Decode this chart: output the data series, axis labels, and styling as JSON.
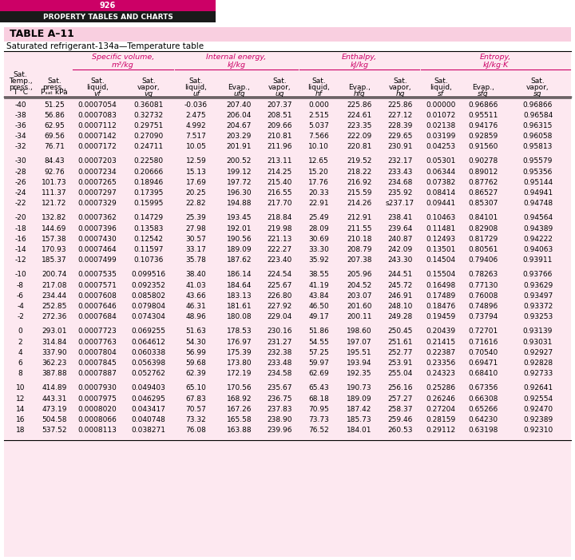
{
  "page_number": "926",
  "header_title": "PROPERTY TABLES AND CHARTS",
  "table_name": "TABLE A–11",
  "subtitle": "Saturated refrigerant-134a—Temperature table",
  "header_bg": "#cc0066",
  "black_bar_bg": "#1a1a1a",
  "table_bg": "#fde8f0",
  "table_name_bg": "#f9cfe0",
  "pink_line": "#cc0066",
  "col_group_labels": [
    "Specific volume,\nm³/kg",
    "Internal energy,\nkJ/kg",
    "Enthalpy,\nkJ/kg",
    "Entropy,\nkJ/kg·K"
  ],
  "row_strings": [
    [
      "-40",
      "51.25",
      "0.0007054",
      "0.36081",
      "-0.036",
      "207.40",
      "207.37",
      "0.000",
      "225.86",
      "225.86",
      "0.00000",
      "0.96866",
      "0.96866"
    ],
    [
      "-38",
      "56.86",
      "0.0007083",
      "0.32732",
      "2.475",
      "206.04",
      "208.51",
      "2.515",
      "224.61",
      "227.12",
      "0.01072",
      "0.95511",
      "0.96584"
    ],
    [
      "-36",
      "62.95",
      "0.0007112",
      "0.29751",
      "4.992",
      "204.67",
      "209.66",
      "5.037",
      "223.35",
      "228.39",
      "0.02138",
      "0.94176",
      "0.96315"
    ],
    [
      "-34",
      "69.56",
      "0.0007142",
      "0.27090",
      "7.517",
      "203.29",
      "210.81",
      "7.566",
      "222.09",
      "229.65",
      "0.03199",
      "0.92859",
      "0.96058"
    ],
    [
      "-32",
      "76.71",
      "0.0007172",
      "0.24711",
      "10.05",
      "201.91",
      "211.96",
      "10.10",
      "220.81",
      "230.91",
      "0.04253",
      "0.91560",
      "0.95813"
    ],
    null,
    [
      "-30",
      "84.43",
      "0.0007203",
      "0.22580",
      "12.59",
      "200.52",
      "213.11",
      "12.65",
      "219.52",
      "232.17",
      "0.05301",
      "0.90278",
      "0.95579"
    ],
    [
      "-28",
      "92.76",
      "0.0007234",
      "0.20666",
      "15.13",
      "199.12",
      "214.25",
      "15.20",
      "218.22",
      "233.43",
      "0.06344",
      "0.89012",
      "0.95356"
    ],
    [
      "-26",
      "101.73",
      "0.0007265",
      "0.18946",
      "17.69",
      "197.72",
      "215.40",
      "17.76",
      "216.92",
      "234.68",
      "0.07382",
      "0.87762",
      "0.95144"
    ],
    [
      "-24",
      "111.37",
      "0.0007297",
      "0.17395",
      "20.25",
      "196.30",
      "216.55",
      "20.33",
      "215.59",
      "235.92",
      "0.08414",
      "0.86527",
      "0.94941"
    ],
    [
      "-22",
      "121.72",
      "0.0007329",
      "0.15995",
      "22.82",
      "194.88",
      "217.70",
      "22.91",
      "214.26",
      "s237.17",
      "0.09441",
      "0.85307",
      "0.94748"
    ],
    null,
    [
      "-20",
      "132.82",
      "0.0007362",
      "0.14729",
      "25.39",
      "193.45",
      "218.84",
      "25.49",
      "212.91",
      "238.41",
      "0.10463",
      "0.84101",
      "0.94564"
    ],
    [
      "-18",
      "144.69",
      "0.0007396",
      "0.13583",
      "27.98",
      "192.01",
      "219.98",
      "28.09",
      "211.55",
      "239.64",
      "0.11481",
      "0.82908",
      "0.94389"
    ],
    [
      "-16",
      "157.38",
      "0.0007430",
      "0.12542",
      "30.57",
      "190.56",
      "221.13",
      "30.69",
      "210.18",
      "240.87",
      "0.12493",
      "0.81729",
      "0.94222"
    ],
    [
      "-14",
      "170.93",
      "0.0007464",
      "0.11597",
      "33.17",
      "189.09",
      "222.27",
      "33.30",
      "208.79",
      "242.09",
      "0.13501",
      "0.80561",
      "0.94063"
    ],
    [
      "-12",
      "185.37",
      "0.0007499",
      "0.10736",
      "35.78",
      "187.62",
      "223.40",
      "35.92",
      "207.38",
      "243.30",
      "0.14504",
      "0.79406",
      "0.93911"
    ],
    null,
    [
      "-10",
      "200.74",
      "0.0007535",
      "0.099516",
      "38.40",
      "186.14",
      "224.54",
      "38.55",
      "205.96",
      "244.51",
      "0.15504",
      "0.78263",
      "0.93766"
    ],
    [
      "-8",
      "217.08",
      "0.0007571",
      "0.092352",
      "41.03",
      "184.64",
      "225.67",
      "41.19",
      "204.52",
      "245.72",
      "0.16498",
      "0.77130",
      "0.93629"
    ],
    [
      "-6",
      "234.44",
      "0.0007608",
      "0.085802",
      "43.66",
      "183.13",
      "226.80",
      "43.84",
      "203.07",
      "246.91",
      "0.17489",
      "0.76008",
      "0.93497"
    ],
    [
      "-4",
      "252.85",
      "0.0007646",
      "0.079804",
      "46.31",
      "181.61",
      "227.92",
      "46.50",
      "201.60",
      "248.10",
      "0.18476",
      "0.74896",
      "0.93372"
    ],
    [
      "-2",
      "272.36",
      "0.0007684",
      "0.074304",
      "48.96",
      "180.08",
      "229.04",
      "49.17",
      "200.11",
      "249.28",
      "0.19459",
      "0.73794",
      "0.93253"
    ],
    null,
    [
      "0",
      "293.01",
      "0.0007723",
      "0.069255",
      "51.63",
      "178.53",
      "230.16",
      "51.86",
      "198.60",
      "250.45",
      "0.20439",
      "0.72701",
      "0.93139"
    ],
    [
      "2",
      "314.84",
      "0.0007763",
      "0.064612",
      "54.30",
      "176.97",
      "231.27",
      "54.55",
      "197.07",
      "251.61",
      "0.21415",
      "0.71616",
      "0.93031"
    ],
    [
      "4",
      "337.90",
      "0.0007804",
      "0.060338",
      "56.99",
      "175.39",
      "232.38",
      "57.25",
      "195.51",
      "252.77",
      "0.22387",
      "0.70540",
      "0.92927"
    ],
    [
      "6",
      "362.23",
      "0.0007845",
      "0.056398",
      "59.68",
      "173.80",
      "233.48",
      "59.97",
      "193.94",
      "253.91",
      "0.23356",
      "0.69471",
      "0.92828"
    ],
    [
      "8",
      "387.88",
      "0.0007887",
      "0.052762",
      "62.39",
      "172.19",
      "234.58",
      "62.69",
      "192.35",
      "255.04",
      "0.24323",
      "0.68410",
      "0.92733"
    ],
    null,
    [
      "10",
      "414.89",
      "0.0007930",
      "0.049403",
      "65.10",
      "170.56",
      "235.67",
      "65.43",
      "190.73",
      "256.16",
      "0.25286",
      "0.67356",
      "0.92641"
    ],
    [
      "12",
      "443.31",
      "0.0007975",
      "0.046295",
      "67.83",
      "168.92",
      "236.75",
      "68.18",
      "189.09",
      "257.27",
      "0.26246",
      "0.66308",
      "0.92554"
    ],
    [
      "14",
      "473.19",
      "0.0008020",
      "0.043417",
      "70.57",
      "167.26",
      "237.83",
      "70.95",
      "187.42",
      "258.37",
      "0.27204",
      "0.65266",
      "0.92470"
    ],
    [
      "16",
      "504.58",
      "0.0008066",
      "0.040748",
      "73.32",
      "165.58",
      "238.90",
      "73.73",
      "185.73",
      "259.46",
      "0.28159",
      "0.64230",
      "0.92389"
    ],
    [
      "18",
      "537.52",
      "0.0008113",
      "0.038271",
      "76.08",
      "163.88",
      "239.96",
      "76.52",
      "184.01",
      "260.53",
      "0.29112",
      "0.63198",
      "0.92310"
    ]
  ]
}
